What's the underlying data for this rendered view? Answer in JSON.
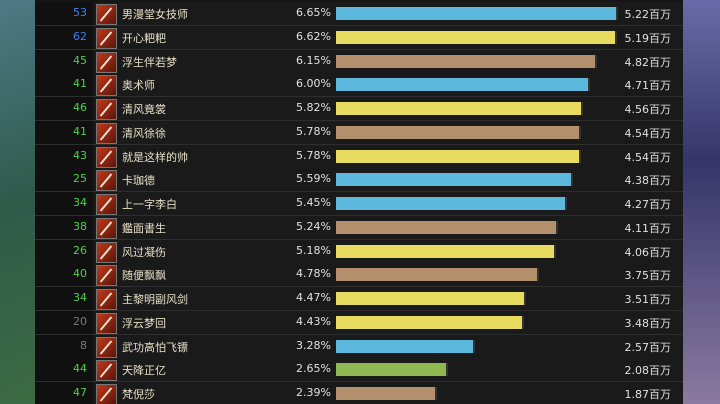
{
  "rows": [
    {
      "level": "53",
      "level_color": "#3d7ef0",
      "name": "男漫堂女技师",
      "percent": 6.65,
      "percent_label": "6.65%",
      "amount": "5.22百万",
      "color": "#5cb8dc"
    },
    {
      "level": "62",
      "level_color": "#3d7ef0",
      "name": "开心粑粑",
      "percent": 6.62,
      "percent_label": "6.62%",
      "amount": "5.19百万",
      "color": "#e8dc60"
    },
    {
      "level": "45",
      "level_color": "#4fcf4f",
      "name": "浮生伴若梦",
      "percent": 6.15,
      "percent_label": "6.15%",
      "amount": "4.82百万",
      "color": "#b38f6c"
    },
    {
      "level": "41",
      "level_color": "#4fcf4f",
      "name": "奥术师",
      "percent": 6.0,
      "percent_label": "6.00%",
      "amount": "4.71百万",
      "color": "#5cb8dc"
    },
    {
      "level": "46",
      "level_color": "#4fcf4f",
      "name": "清风竟裳",
      "percent": 5.82,
      "percent_label": "5.82%",
      "amount": "4.56百万",
      "color": "#e8dc60"
    },
    {
      "level": "41",
      "level_color": "#4fcf4f",
      "name": "清风徐徐",
      "percent": 5.78,
      "percent_label": "5.78%",
      "amount": "4.54百万",
      "color": "#b38f6c"
    },
    {
      "level": "43",
      "level_color": "#4fcf4f",
      "name": "就是这样的帅",
      "percent": 5.78,
      "percent_label": "5.78%",
      "amount": "4.54百万",
      "color": "#e8dc60"
    },
    {
      "level": "25",
      "level_color": "#4fcf4f",
      "name": "卡珈德",
      "percent": 5.59,
      "percent_label": "5.59%",
      "amount": "4.38百万",
      "color": "#5cb8dc"
    },
    {
      "level": "34",
      "level_color": "#4fcf4f",
      "name": "上一字李白",
      "percent": 5.45,
      "percent_label": "5.45%",
      "amount": "4.27百万",
      "color": "#5cb8dc"
    },
    {
      "level": "38",
      "level_color": "#4fcf4f",
      "name": "鑑面書生",
      "percent": 5.24,
      "percent_label": "5.24%",
      "amount": "4.11百万",
      "color": "#b38f6c"
    },
    {
      "level": "26",
      "level_color": "#4fcf4f",
      "name": "风过凝伤",
      "percent": 5.18,
      "percent_label": "5.18%",
      "amount": "4.06百万",
      "color": "#e8dc60"
    },
    {
      "level": "40",
      "level_color": "#4fcf4f",
      "name": "随便飘飘",
      "percent": 4.78,
      "percent_label": "4.78%",
      "amount": "3.75百万",
      "color": "#b38f6c"
    },
    {
      "level": "34",
      "level_color": "#4fcf4f",
      "name": "主黎明副风剑",
      "percent": 4.47,
      "percent_label": "4.47%",
      "amount": "3.51百万",
      "color": "#e8dc60"
    },
    {
      "level": "20",
      "level_color": "#7a7a7a",
      "name": "浮云梦回",
      "percent": 4.43,
      "percent_label": "4.43%",
      "amount": "3.48百万",
      "color": "#e8dc60"
    },
    {
      "level": "8",
      "level_color": "#7a7a7a",
      "name": "武功高怕飞镖",
      "percent": 3.28,
      "percent_label": "3.28%",
      "amount": "2.57百万",
      "color": "#5cb8dc"
    },
    {
      "level": "44",
      "level_color": "#4fcf4f",
      "name": "天降正亿",
      "percent": 2.65,
      "percent_label": "2.65%",
      "amount": "2.08百万",
      "color": "#8fb852"
    },
    {
      "level": "47",
      "level_color": "#4fcf4f",
      "name": "梵倪莎",
      "percent": 2.39,
      "percent_label": "2.39%",
      "amount": "1.87百万",
      "color": "#b38f6c"
    }
  ]
}
